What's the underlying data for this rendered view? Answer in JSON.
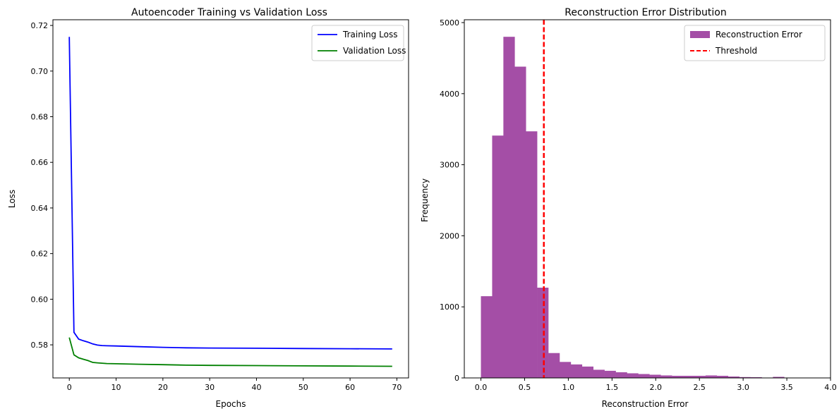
{
  "chart_data": [
    {
      "type": "line",
      "title": "Autoencoder Training vs Validation Loss",
      "xlabel": "Epochs",
      "ylabel": "Loss",
      "xlim": [
        -3.5,
        72.5
      ],
      "ylim": [
        0.5655,
        0.7225
      ],
      "xticks": [
        0,
        10,
        20,
        30,
        40,
        50,
        60,
        70
      ],
      "yticks": [
        0.58,
        0.6,
        0.62,
        0.64,
        0.66,
        0.68,
        0.7,
        0.72
      ],
      "grid": false,
      "legend_position": "top-right",
      "series": [
        {
          "name": "Training Loss",
          "color": "#0000ff",
          "x": [
            0,
            1,
            2,
            3,
            4,
            5,
            6,
            7,
            8,
            10,
            15,
            20,
            25,
            30,
            40,
            50,
            60,
            69
          ],
          "values": [
            0.715,
            0.5855,
            0.5825,
            0.5818,
            0.5812,
            0.5804,
            0.5799,
            0.5797,
            0.5796,
            0.5795,
            0.5792,
            0.5789,
            0.5787,
            0.5786,
            0.5785,
            0.5784,
            0.5783,
            0.5782
          ]
        },
        {
          "name": "Validation Loss",
          "color": "#008000",
          "x": [
            0,
            1,
            2,
            3,
            4,
            5,
            6,
            8,
            10,
            15,
            20,
            25,
            30,
            40,
            50,
            60,
            69
          ],
          "values": [
            0.5832,
            0.5756,
            0.5743,
            0.5737,
            0.5731,
            0.5723,
            0.5721,
            0.5718,
            0.5717,
            0.5715,
            0.5713,
            0.5711,
            0.571,
            0.5709,
            0.5708,
            0.5707,
            0.5706
          ]
        }
      ]
    },
    {
      "type": "bar",
      "title": "Reconstruction Error Distribution",
      "xlabel": "Reconstruction Error",
      "ylabel": "Frequency",
      "xlim": [
        -0.19,
        4.0
      ],
      "ylim": [
        0,
        5040
      ],
      "xticks": [
        0.0,
        0.5,
        1.0,
        1.5,
        2.0,
        2.5,
        3.0,
        3.5,
        4.0
      ],
      "yticks": [
        0,
        1000,
        2000,
        3000,
        4000,
        5000
      ],
      "grid": false,
      "legend_position": "top-right",
      "bin_start": 0.0,
      "bin_width": 0.1285,
      "bar_color": "#a44ea6",
      "values": [
        1150,
        3410,
        4800,
        4380,
        3470,
        1270,
        350,
        225,
        190,
        160,
        115,
        100,
        80,
        65,
        55,
        45,
        35,
        30,
        30,
        30,
        35,
        30,
        20,
        12,
        10,
        5,
        15,
        5,
        5
      ],
      "series_name": "Reconstruction Error",
      "threshold": {
        "name": "Threshold",
        "value": 0.72,
        "color": "#ff0000"
      }
    }
  ]
}
